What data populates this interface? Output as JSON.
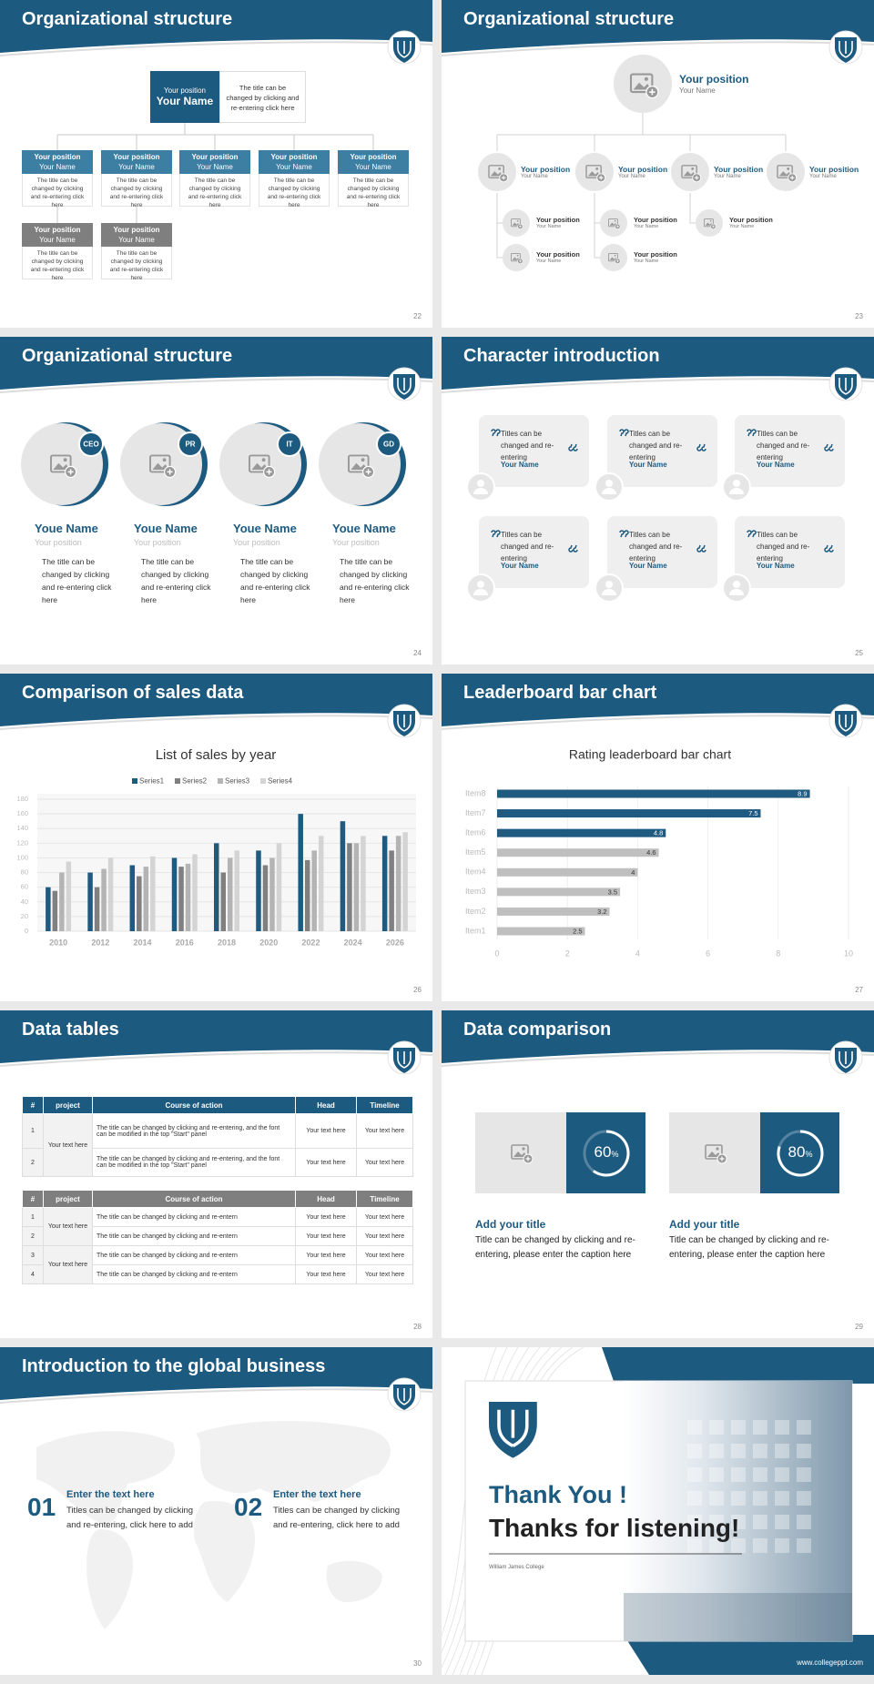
{
  "slides": [
    {
      "title": "Organizational structure",
      "page": "22",
      "head": {
        "position": "Your position",
        "name": "Your Name",
        "text": "The title can be changed by clicking and re-entering click here"
      },
      "boxes": [
        {
          "position": "Your position",
          "name": "Your Name",
          "text": "The title can be changed by clicking and re-entering click here"
        },
        {
          "position": "Your position",
          "name": "Your Name",
          "text": "The title can be changed by clicking and re-entering click here"
        },
        {
          "position": "Your position",
          "name": "Your Name",
          "text": "The title can be changed by clicking and re-entering click here"
        },
        {
          "position": "Your position",
          "name": "Your Name",
          "text": "The title can be changed by clicking and re-entering click here"
        },
        {
          "position": "Your position",
          "name": "Your Name",
          "text": "The title can be changed by clicking and re-entering click here"
        },
        {
          "position": "Your position",
          "name": "Your Name",
          "text": "The title can be changed by clicking and re-entering click here"
        },
        {
          "position": "Your position",
          "name": "Your Name",
          "text": "The title can be changed by clicking and re-entering click here"
        }
      ]
    },
    {
      "title": "Organizational structure",
      "page": "23",
      "head": {
        "position": "Your position",
        "name": "Your Name"
      },
      "nodes": [
        {
          "position": "Your position",
          "name": "Your Name"
        },
        {
          "position": "Your position",
          "name": "Your Name"
        },
        {
          "position": "Your position",
          "name": "Your Name"
        },
        {
          "position": "Your position",
          "name": "Your Name"
        }
      ],
      "subnodes": [
        {
          "position": "Your position",
          "name": "Your Name"
        },
        {
          "position": "Your position",
          "name": "Your Name"
        },
        {
          "position": "Your position",
          "name": "Your Name"
        },
        {
          "position": "Your position",
          "name": "Your Name"
        },
        {
          "position": "Your position",
          "name": "Your Name"
        }
      ]
    },
    {
      "title": "Organizational structure",
      "page": "24",
      "people": [
        {
          "tag": "CEO",
          "name": "Youe Name",
          "position": "Your position",
          "text": "The title can be changed by clicking and re-entering click here"
        },
        {
          "tag": "PR",
          "name": "Youe Name",
          "position": "Your position",
          "text": "The title can be changed by clicking and re-entering click here"
        },
        {
          "tag": "IT",
          "name": "Youe Name",
          "position": "Your position",
          "text": "The title can be changed by clicking and re-entering click here"
        },
        {
          "tag": "GD",
          "name": "Youe Name",
          "position": "Your position",
          "text": "The title can be changed by clicking and re-entering click here"
        }
      ]
    },
    {
      "title": "Character introduction",
      "page": "25",
      "cards": [
        {
          "text": "Titles can be changed and re-entering",
          "name": "Your Name"
        },
        {
          "text": "Titles can be changed and re-entering",
          "name": "Your Name"
        },
        {
          "text": "Titles can be changed and re-entering",
          "name": "Your Name"
        },
        {
          "text": "Titles can be changed and re-entering",
          "name": "Your Name"
        },
        {
          "text": "Titles can be changed and re-entering",
          "name": "Your Name"
        },
        {
          "text": "Titles can be changed and re-entering",
          "name": "Your Name"
        }
      ]
    },
    {
      "title": "Comparison of sales data",
      "page": "26",
      "chart": {
        "type": "bar",
        "title": "List of sales by year",
        "categories": [
          "2010",
          "2012",
          "2014",
          "2016",
          "2018",
          "2020",
          "2022",
          "2024",
          "2026"
        ],
        "series": [
          {
            "name": "Series1",
            "color": "#1f5a80",
            "values": [
              60,
              80,
              90,
              100,
              120,
              110,
              160,
              150,
              130
            ]
          },
          {
            "name": "Series2",
            "color": "#808080",
            "values": [
              55,
              60,
              75,
              88,
              80,
              90,
              97,
              120,
              110
            ]
          },
          {
            "name": "Series3",
            "color": "#b4b4b4",
            "values": [
              80,
              85,
              88,
              92,
              100,
              100,
              110,
              120,
              130
            ]
          },
          {
            "name": "Series4",
            "color": "#d4d4d4",
            "values": [
              95,
              100,
              102,
              105,
              110,
              120,
              130,
              130,
              135
            ]
          }
        ],
        "ylim": [
          0,
          180
        ],
        "yticks": [
          0,
          20,
          40,
          60,
          80,
          100,
          120,
          140,
          160,
          180
        ],
        "grid": true
      }
    },
    {
      "title": "Leaderboard bar chart",
      "page": "27",
      "chart": {
        "type": "barh",
        "title": "Rating leaderboard bar chart",
        "categories": [
          "Item8",
          "Item7",
          "Item6",
          "Item5",
          "Item4",
          "Item3",
          "Item2",
          "Item1"
        ],
        "values": [
          8.9,
          7.5,
          4.8,
          4.6,
          4,
          3.5,
          3.2,
          2.5
        ],
        "colors": [
          "#1f5a80",
          "#1f5a80",
          "#1f5a80",
          "#bfbfbf",
          "#bfbfbf",
          "#bfbfbf",
          "#bfbfbf",
          "#bfbfbf"
        ],
        "xlim": [
          0,
          10
        ],
        "xticks": [
          0,
          2,
          4,
          6,
          8,
          10
        ],
        "grid": true
      }
    },
    {
      "title": "Data tables",
      "page": "28",
      "tables": [
        {
          "header": [
            "#",
            "project",
            "Course of action",
            "Head",
            "Timeline"
          ],
          "rows": [
            {
              "number": "1",
              "project": "Your text here",
              "action": "The title can be changed by clicking and re-entering, and the font can be modified in the top \"Start\" panel",
              "head": "Your text here",
              "timeline": "Your text here"
            },
            {
              "number": "2",
              "action": "The title can be changed by clicking and re-entering, and the font can be modified in the top \"Start\" panel",
              "head": "Your text here",
              "timeline": "Your text here"
            }
          ]
        },
        {
          "header": [
            "#",
            "project",
            "Course of action",
            "Head",
            "Timeline"
          ],
          "rows": [
            {
              "number": "1",
              "project": "Your text here",
              "action": "The title can be changed by clicking and re-entern",
              "head": "Your text here",
              "timeline": "Your text here"
            },
            {
              "number": "2",
              "action": "The title can be changed by clicking and re-entern",
              "head": "Your text here",
              "timeline": "Your text here"
            },
            {
              "number": "3",
              "project": "Your text here",
              "action": "The title can be changed by clicking and re-entern",
              "head": "Your text here",
              "timeline": "Your text here"
            },
            {
              "number": "4",
              "action": "The title can be changed by clicking and re-entern",
              "head": "Your text here",
              "timeline": "Your text here"
            }
          ]
        }
      ]
    },
    {
      "title": "Data comparison",
      "page": "29",
      "items": [
        {
          "value": 60,
          "unit": "%",
          "heading": "Add your title",
          "text": "Title can be changed by clicking and re-entering, please enter the caption here"
        },
        {
          "value": 80,
          "unit": "%",
          "heading": "Add your title",
          "text": "Title can be changed by clicking and re-entering, please enter the caption here"
        }
      ]
    },
    {
      "title": "Introduction to the global business",
      "page": "30",
      "items": [
        {
          "number": "01",
          "heading": "Enter the text here",
          "text": "Titles can be changed by clicking and re-entering, click here to add"
        },
        {
          "number": "02",
          "heading": "Enter the text here",
          "text": "Titles can be changed by clicking and re-entering, click here to add"
        }
      ]
    },
    {
      "thanks": "Thank You !",
      "subtitle": "Thanks for listening!",
      "college": "William James College",
      "url": "www.collegeppt.com"
    }
  ]
}
